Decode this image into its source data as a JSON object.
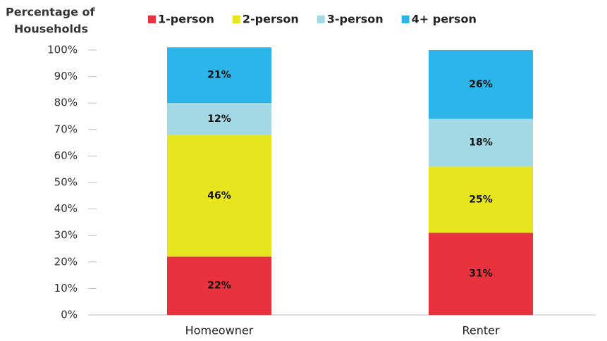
{
  "chart_data": {
    "type": "stacked_bar",
    "y_label": [
      "Percentage of",
      "Households"
    ],
    "categories": [
      "Homeowner",
      "Renter"
    ],
    "series": [
      {
        "name": "1-person",
        "color": "#e8323e",
        "values": [
          22,
          31
        ],
        "value_labels": [
          "22%",
          "31%"
        ]
      },
      {
        "name": "2-person",
        "color": "#e6e51e",
        "values": [
          46,
          25
        ],
        "value_labels": [
          "46%",
          "25%"
        ]
      },
      {
        "name": "3-person",
        "color": "#a2d9e4",
        "values": [
          12,
          18
        ],
        "value_labels": [
          "12%",
          "18%"
        ]
      },
      {
        "name": "4+ person",
        "color": "#2bb5e8",
        "values": [
          21,
          26
        ],
        "value_labels": [
          "21%",
          "26%"
        ]
      }
    ],
    "ylim": [
      0,
      100
    ],
    "yticks": [
      {
        "value": 0,
        "label": "0%"
      },
      {
        "value": 10,
        "label": "10%"
      },
      {
        "value": 20,
        "label": "20%"
      },
      {
        "value": 30,
        "label": "30%"
      },
      {
        "value": 40,
        "label": "40%"
      },
      {
        "value": 50,
        "label": "50%"
      },
      {
        "value": 60,
        "label": "60%"
      },
      {
        "value": 70,
        "label": "70%"
      },
      {
        "value": 80,
        "label": "80%"
      },
      {
        "value": 90,
        "label": "90%"
      },
      {
        "value": 100,
        "label": "100%"
      }
    ],
    "legend": "top"
  }
}
